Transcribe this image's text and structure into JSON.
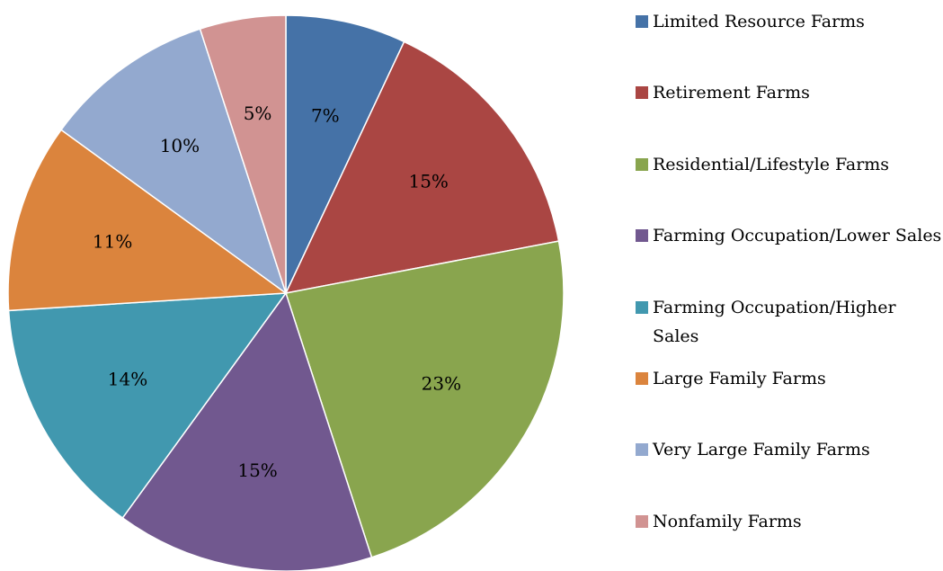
{
  "chart_data": {
    "type": "pie",
    "categories": [
      "Limited Resource Farms",
      "Retirement Farms",
      "Residential/Lifestyle Farms",
      "Farming Occupation/Lower Sales",
      "Farming Occupation/Higher Sales",
      "Large Family Farms",
      "Very Large Family Farms",
      "Nonfamily Farms"
    ],
    "values": [
      7,
      15,
      23,
      15,
      14,
      11,
      10,
      5
    ],
    "value_labels": [
      "7%",
      "15%",
      "23%",
      "15%",
      "14%",
      "11%",
      "10%",
      "5%"
    ],
    "colors": [
      "#4572a7",
      "#aa4643",
      "#89a54e",
      "#71588f",
      "#4198af",
      "#db843d",
      "#93a9cf",
      "#d19392"
    ],
    "legend": "right"
  }
}
